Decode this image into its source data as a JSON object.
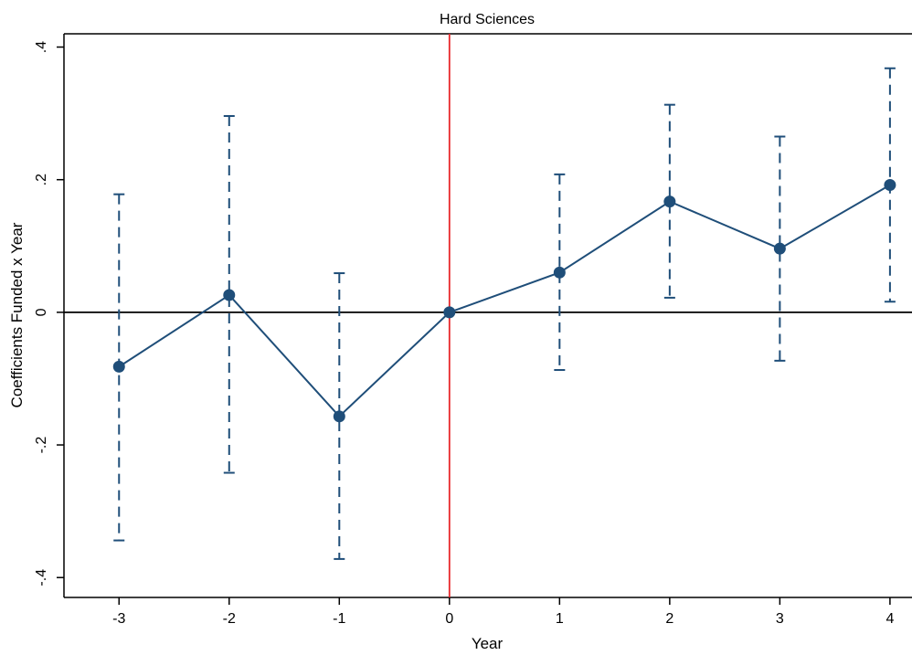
{
  "chart_data": {
    "type": "scatter",
    "title": "Hard Sciences",
    "xlabel": "Year",
    "ylabel": "Coefficients Funded x Year",
    "xlim": [
      -3.5,
      4.2
    ],
    "ylim": [
      -0.43,
      0.42
    ],
    "x_ticks": [
      -3,
      -2,
      -1,
      0,
      1,
      2,
      3,
      4
    ],
    "x_tick_labels": [
      "-3",
      "-2",
      "-1",
      "0",
      "1",
      "2",
      "3",
      "4"
    ],
    "y_ticks": [
      -0.4,
      -0.2,
      0,
      0.2,
      0.4
    ],
    "y_tick_labels": [
      "-.4",
      "-.2",
      "0",
      ".2",
      ".4"
    ],
    "grid": false,
    "reference_lines": {
      "horizontal_at": 0,
      "vertical_at": 0,
      "vertical_color": "#e8282b",
      "horizontal_color": "#000000"
    },
    "series": [
      {
        "color": "#1f4e79",
        "x": [
          -3,
          -2,
          -1,
          0,
          1,
          2,
          3,
          4
        ],
        "y": [
          -0.082,
          0.026,
          -0.157,
          0.0,
          0.06,
          0.167,
          0.096,
          0.192
        ],
        "ci_low": [
          -0.344,
          -0.242,
          -0.372,
          0.0,
          -0.087,
          0.022,
          -0.073,
          0.016
        ],
        "ci_high": [
          0.178,
          0.296,
          0.059,
          0.0,
          0.208,
          0.313,
          0.265,
          0.368
        ]
      }
    ]
  }
}
